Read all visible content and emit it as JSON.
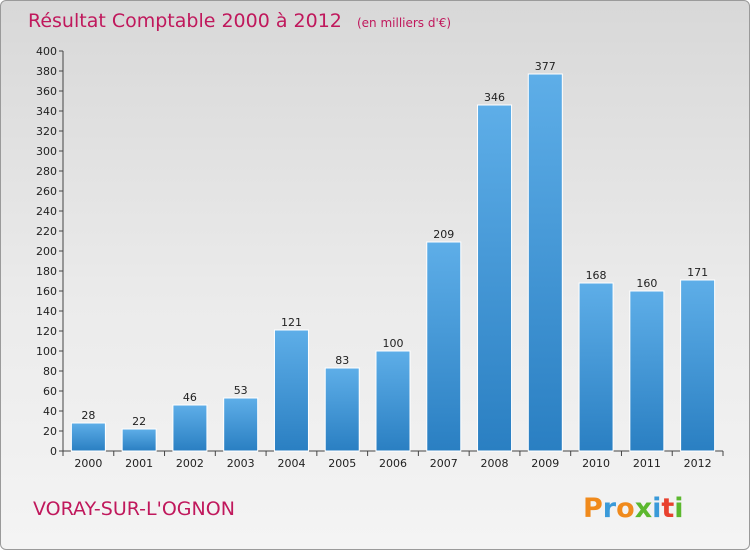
{
  "chart_data": {
    "type": "bar",
    "title": "Résultat Comptable 2000 à 2012",
    "unit_note": "(en milliers d'€)",
    "categories": [
      "2000",
      "2001",
      "2002",
      "2003",
      "2004",
      "2005",
      "2006",
      "2007",
      "2008",
      "2009",
      "2010",
      "2011",
      "2012"
    ],
    "values": [
      28,
      22,
      46,
      53,
      121,
      83,
      100,
      209,
      346,
      377,
      168,
      160,
      171
    ],
    "ylim": [
      0,
      400
    ],
    "ytick_step": 20,
    "grid": false,
    "xlabel": "",
    "ylabel": ""
  },
  "footer": {
    "location": "VORAY-SUR-L'OGNON",
    "logo_text": "Proxiti"
  },
  "colors": {
    "title": "#c0185c",
    "bar_top": "#5eaee8",
    "bar_bottom": "#2a7fc2",
    "logo_letters": [
      "#f08a1c",
      "#3a9ad9",
      "#f08a1c",
      "#5cb82e",
      "#3a9ad9",
      "#e8412e",
      "#5cb82e"
    ]
  }
}
